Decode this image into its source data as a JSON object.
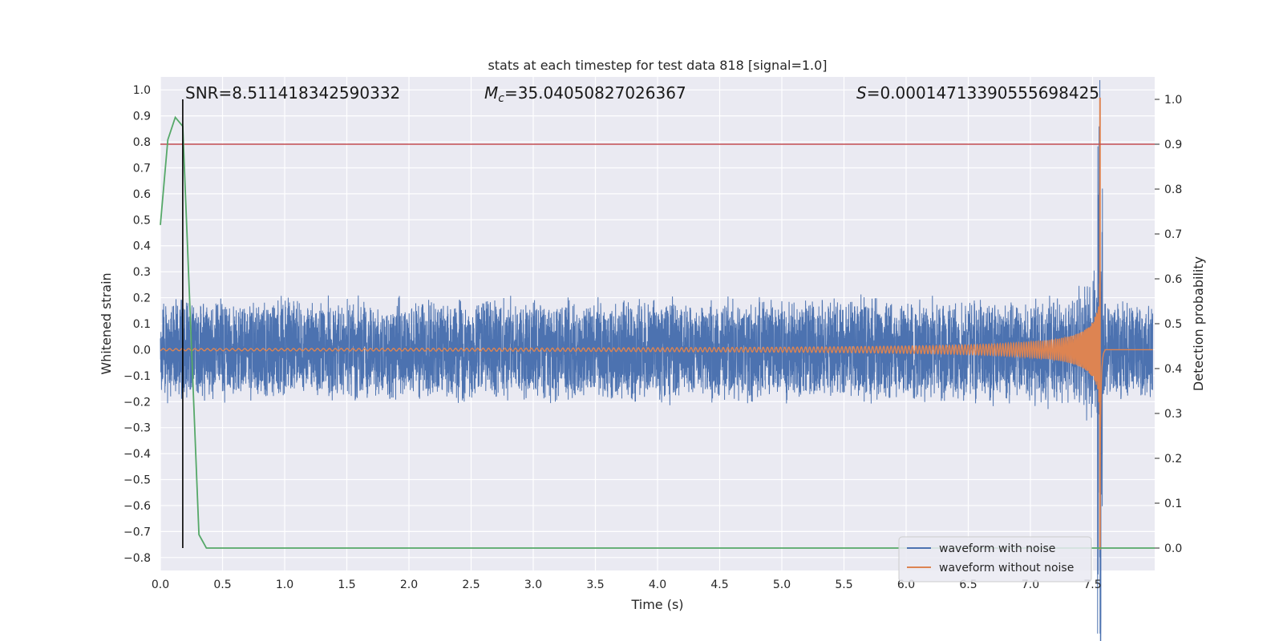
{
  "chart_data": {
    "type": "line",
    "title": "stats at each timestep for test data 818 [signal=1.0]",
    "xlabel": "Time (s)",
    "ylabel_left": "Whitened strain",
    "ylabel_right": "Detection probability",
    "xlim": [
      0.0,
      8.0
    ],
    "ylim_left": [
      -0.85,
      1.05
    ],
    "ylim_right": [
      -0.05,
      1.05
    ],
    "x_ticks": [
      "0.0",
      "0.5",
      "1.0",
      "1.5",
      "2.0",
      "2.5",
      "3.0",
      "3.5",
      "4.0",
      "4.5",
      "5.0",
      "5.5",
      "6.0",
      "6.5",
      "7.0",
      "7.5"
    ],
    "y_ticks_left": [
      "1.0",
      "0.9",
      "0.8",
      "0.7",
      "0.6",
      "0.5",
      "0.4",
      "0.3",
      "0.2",
      "0.1",
      "0.0",
      "−0.1",
      "−0.2",
      "−0.3",
      "−0.4",
      "−0.5",
      "−0.6",
      "−0.7",
      "−0.8"
    ],
    "y_ticks_right": [
      "1.0",
      "0.9",
      "0.8",
      "0.7",
      "0.6",
      "0.5",
      "0.4",
      "0.3",
      "0.2",
      "0.1",
      "0.0"
    ],
    "grid": true,
    "legend_position": "lower-right",
    "annotations": {
      "snr": "SNR=8.511418342590332",
      "mc_symbol": "M",
      "mc_sub": "c",
      "mc_value": "=35.04050827026367",
      "s_symbol": "S",
      "s_value": "=0.0001471339055569842​5"
    },
    "series": [
      {
        "name": "waveform with noise",
        "axis": "left",
        "color": "#4c72b0",
        "noise_amplitude": 0.21,
        "merger_time": 7.56
      },
      {
        "name": "waveform without noise",
        "axis": "left",
        "color": "#dd8452",
        "merger_time": 7.56,
        "peak_amplitude": 0.7
      },
      {
        "axis": "right",
        "color": "#55a868",
        "x": [
          0.0,
          0.06,
          0.12,
          0.18,
          0.31,
          0.37,
          8.0
        ],
        "y": [
          0.72,
          0.91,
          0.96,
          0.94,
          0.03,
          0.0,
          0.0
        ]
      }
    ],
    "threshold_line": {
      "axis": "right",
      "value": 0.9,
      "color": "#c44e52"
    },
    "detection_marker": {
      "x": 0.18,
      "color": "#000000"
    }
  }
}
